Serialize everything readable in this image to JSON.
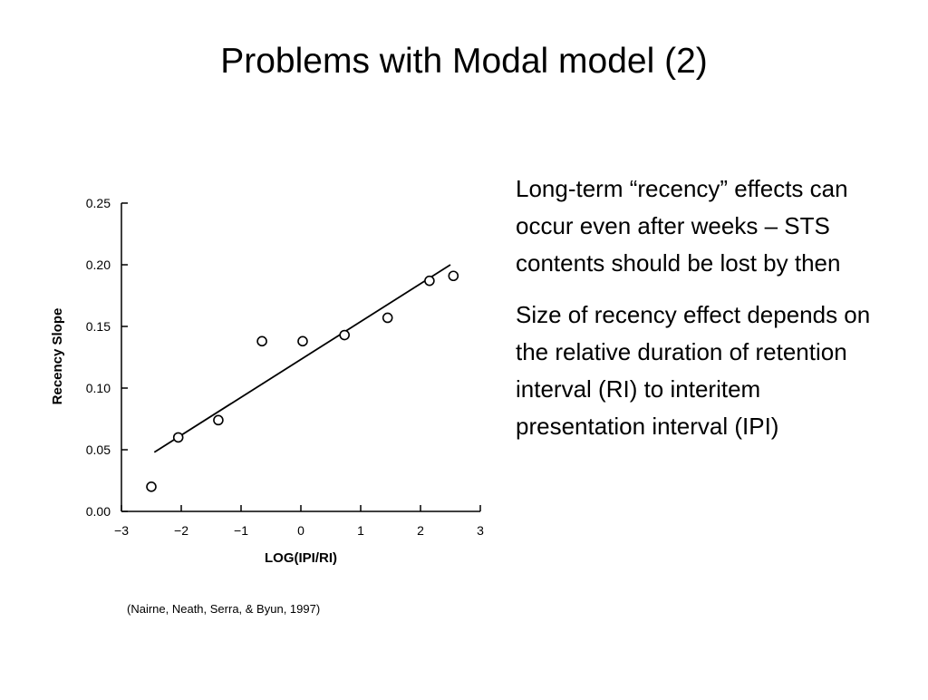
{
  "slide": {
    "title": "Problems with Modal model (2)",
    "bullets": [
      "Long-term “recency” effects can occur even after weeks – STS contents should be lost by then",
      "Size of recency effect depends on the relative duration of retention interval (RI) to interitem presentation interval (IPI)"
    ],
    "citation": "(Nairne, Neath, Serra, & Byun, 1997)"
  },
  "chart_data": {
    "type": "scatter",
    "xlabel": "LOG(IPI/RI)",
    "ylabel": "Recency Slope",
    "xlim": [
      -3,
      3
    ],
    "ylim": [
      0,
      0.25
    ],
    "x_ticks": [
      -3,
      -2,
      -1,
      0,
      1,
      2,
      3
    ],
    "x_tick_labels": [
      "−3",
      "−2",
      "−1",
      "0",
      "1",
      "2",
      "3"
    ],
    "y_ticks": [
      0,
      0.05,
      0.1,
      0.15,
      0.2,
      0.25
    ],
    "y_tick_labels": [
      "0.00",
      "0.05",
      "0.10",
      "0.15",
      "0.20",
      "0.25"
    ],
    "points": [
      {
        "x": -2.5,
        "y": 0.02
      },
      {
        "x": -2.05,
        "y": 0.06
      },
      {
        "x": -1.38,
        "y": 0.074
      },
      {
        "x": -0.65,
        "y": 0.138
      },
      {
        "x": 0.03,
        "y": 0.138
      },
      {
        "x": 0.73,
        "y": 0.143
      },
      {
        "x": 1.45,
        "y": 0.157
      },
      {
        "x": 2.15,
        "y": 0.187
      },
      {
        "x": 2.55,
        "y": 0.191
      }
    ],
    "fit_line": {
      "x": [
        -2.45,
        2.5
      ],
      "y": [
        0.048,
        0.2
      ]
    },
    "grid": false
  }
}
